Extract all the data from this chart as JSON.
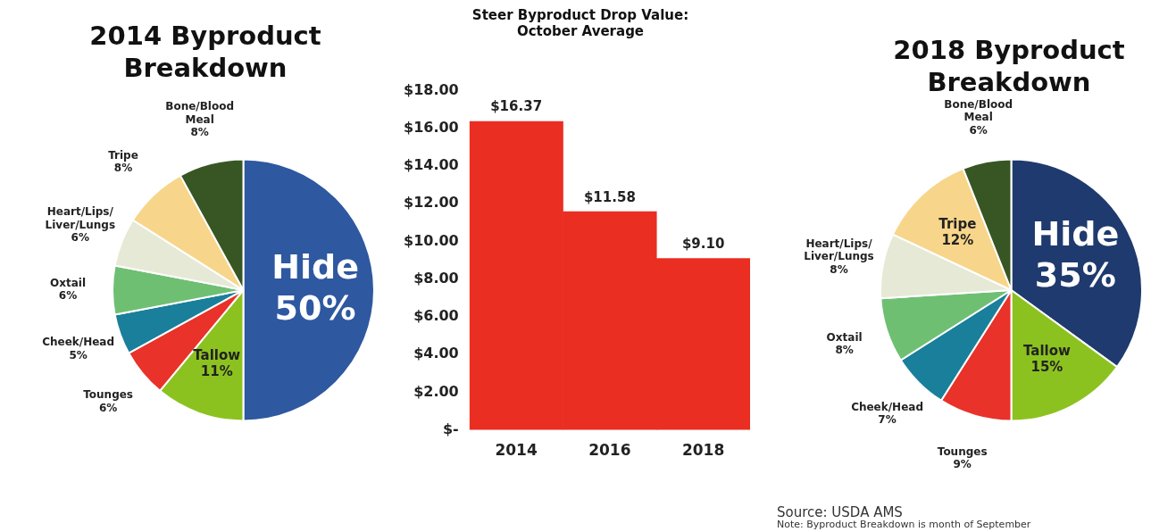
{
  "chart_data": [
    {
      "type": "pie",
      "title": "2014 Byproduct Breakdown",
      "categories": [
        "Hide",
        "Tallow",
        "Tounges",
        "Cheek/Head",
        "Oxtail",
        "Heart/Lips/Liver/Lungs",
        "Tripe",
        "Bone/Blood Meal"
      ],
      "values": [
        50,
        11,
        6,
        5,
        6,
        6,
        8,
        8
      ],
      "value_labels": [
        "50%",
        "11%",
        "6%",
        "5%",
        "6%",
        "6%",
        "8%",
        "8%"
      ],
      "colors": [
        "#2e58a0",
        "#8cc21f",
        "#e8322a",
        "#1a7f9a",
        "#6fbf73",
        "#e6e9d6",
        "#f7d58a",
        "#375623"
      ]
    },
    {
      "type": "bar",
      "title": "Steer Byproduct Drop Value: October Average",
      "categories": [
        "2014",
        "2016",
        "2018"
      ],
      "values": [
        16.37,
        11.58,
        9.1
      ],
      "value_labels": [
        "$16.37",
        "$11.58",
        "$9.10"
      ],
      "color": "#ea2e22",
      "ylim": [
        0,
        18
      ],
      "yticks": [
        {
          "value": 0,
          "label": "$-"
        },
        {
          "value": 2,
          "label": "$2.00"
        },
        {
          "value": 4,
          "label": "$4.00"
        },
        {
          "value": 6,
          "label": "$6.00"
        },
        {
          "value": 8,
          "label": "$8.00"
        },
        {
          "value": 10,
          "label": "$10.00"
        },
        {
          "value": 12,
          "label": "$12.00"
        },
        {
          "value": 14,
          "label": "$14.00"
        },
        {
          "value": 16,
          "label": "$16.00"
        },
        {
          "value": 18,
          "label": "$18.00"
        }
      ],
      "grid": false
    },
    {
      "type": "pie",
      "title": "2018 Byproduct Breakdown",
      "categories": [
        "Hide",
        "Tallow",
        "Tounges",
        "Cheek/Head",
        "Oxtail",
        "Heart/Lips/Liver/Lungs",
        "Tripe",
        "Bone/Blood Meal"
      ],
      "values": [
        35,
        15,
        9,
        7,
        8,
        8,
        12,
        6
      ],
      "value_labels": [
        "35%",
        "15%",
        "9%",
        "7%",
        "8%",
        "8%",
        "12%",
        "6%"
      ],
      "colors": [
        "#1f3a6e",
        "#8cc21f",
        "#e8322a",
        "#1a7f9a",
        "#6fbf73",
        "#e6e9d6",
        "#f7d58a",
        "#375623"
      ],
      "annotations": [
        "Source: USDA AMS",
        "Note: Byproduct Breakdown is month of September"
      ]
    }
  ]
}
